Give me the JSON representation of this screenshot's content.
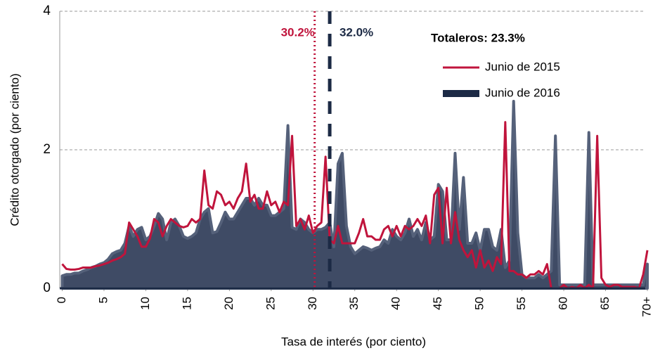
{
  "chart_data": {
    "type": "area_line",
    "x_label": "Tasa de interés (por ciento)",
    "y_label": "Crédito otorgado (por ciento)",
    "annotation": "Totaleros: 23.3%",
    "x": [
      0,
      0.5,
      1,
      1.5,
      2,
      2.5,
      3,
      3.5,
      4,
      4.5,
      5,
      5.5,
      6,
      6.5,
      7,
      7.5,
      8,
      8.5,
      9,
      9.5,
      10,
      10.5,
      11,
      11.5,
      12,
      12.5,
      13,
      13.5,
      14,
      14.5,
      15,
      15.5,
      16,
      16.5,
      17,
      17.5,
      18,
      18.5,
      19,
      19.5,
      20,
      20.5,
      21,
      21.5,
      22,
      22.5,
      23,
      23.5,
      24,
      24.5,
      25,
      25.5,
      26,
      26.5,
      27,
      27.5,
      28,
      28.5,
      29,
      29.5,
      30,
      30.5,
      31,
      31.5,
      32,
      32.5,
      33,
      33.5,
      34,
      34.5,
      35,
      35.5,
      36,
      36.5,
      37,
      37.5,
      38,
      38.5,
      39,
      39.5,
      40,
      40.5,
      41,
      41.5,
      42,
      42.5,
      43,
      43.5,
      44,
      44.5,
      45,
      45.5,
      46,
      46.5,
      47,
      47.5,
      48,
      48.5,
      49,
      49.5,
      50,
      50.5,
      51,
      51.5,
      52,
      52.5,
      53,
      53.5,
      54,
      54.5,
      55,
      55.5,
      56,
      56.5,
      57,
      57.5,
      58,
      58.5,
      59,
      59.5,
      60,
      60.5,
      61,
      61.5,
      62,
      62.5,
      63,
      63.5,
      64,
      64.5,
      65,
      65.5,
      66,
      66.5,
      67,
      67.5,
      68,
      68.5,
      69,
      69.5,
      70
    ],
    "series": [
      {
        "name": "Junio de 2016",
        "kind": "area",
        "color": "#3f4b65",
        "edge": "#55617a",
        "values": [
          0.18,
          0.2,
          0.2,
          0.22,
          0.22,
          0.25,
          0.27,
          0.3,
          0.32,
          0.35,
          0.37,
          0.42,
          0.5,
          0.53,
          0.55,
          0.65,
          0.9,
          0.75,
          0.85,
          0.88,
          0.7,
          0.75,
          0.9,
          1.08,
          1.0,
          0.7,
          0.95,
          1.0,
          0.9,
          0.75,
          0.72,
          0.75,
          0.8,
          1.0,
          1.1,
          1.15,
          0.8,
          0.82,
          0.95,
          1.1,
          1.0,
          1.0,
          1.1,
          1.2,
          1.3,
          1.3,
          1.2,
          1.3,
          1.2,
          1.2,
          1.05,
          1.05,
          1.1,
          1.15,
          2.35,
          0.88,
          0.85,
          1.0,
          0.95,
          0.85,
          0.8,
          0.85,
          0.85,
          0.88,
          0.95,
          0.6,
          1.8,
          1.95,
          0.9,
          0.6,
          0.5,
          0.55,
          0.6,
          0.58,
          0.55,
          0.58,
          0.6,
          0.7,
          0.65,
          0.85,
          0.75,
          0.7,
          0.8,
          1.0,
          0.75,
          0.85,
          0.7,
          0.95,
          0.7,
          0.75,
          1.5,
          1.4,
          0.7,
          0.7,
          1.95,
          0.85,
          1.6,
          0.65,
          0.65,
          0.8,
          0.55,
          0.85,
          0.85,
          0.6,
          0.55,
          0.85,
          0.3,
          0.4,
          2.7,
          0.8,
          0.2,
          0.15,
          0.15,
          0.15,
          0.2,
          0.15,
          0.2,
          0.25,
          2.2,
          0.05,
          0.05,
          0.05,
          0.05,
          0.05,
          0.05,
          0.05,
          2.25,
          0.05,
          0.05,
          0.05,
          0.05,
          0.05,
          0.05,
          0.05,
          0.05,
          0.05,
          0.05,
          0.05,
          0.05,
          0.05,
          0.35
        ]
      },
      {
        "name": "Junio de 2015",
        "kind": "line",
        "color": "#c0143c",
        "values": [
          0.35,
          0.28,
          0.27,
          0.27,
          0.28,
          0.3,
          0.3,
          0.3,
          0.32,
          0.33,
          0.35,
          0.37,
          0.4,
          0.42,
          0.45,
          0.5,
          0.95,
          0.85,
          0.75,
          0.6,
          0.6,
          0.72,
          1.0,
          0.95,
          0.75,
          0.9,
          1.0,
          0.95,
          0.9,
          0.88,
          0.9,
          1.0,
          0.95,
          1.0,
          1.7,
          1.2,
          1.15,
          1.4,
          1.35,
          1.2,
          1.25,
          1.15,
          1.3,
          1.4,
          1.8,
          1.25,
          1.35,
          1.15,
          1.15,
          1.4,
          1.2,
          1.25,
          1.1,
          1.25,
          1.2,
          2.2,
          0.9,
          1.0,
          0.85,
          1.05,
          0.8,
          0.9,
          0.95,
          1.9,
          0.7,
          0.65,
          0.9,
          0.65,
          0.65,
          0.65,
          0.65,
          0.8,
          1.0,
          0.75,
          0.75,
          0.7,
          0.7,
          0.85,
          0.9,
          0.75,
          0.9,
          0.75,
          0.9,
          0.85,
          0.9,
          1.0,
          0.9,
          1.05,
          0.65,
          1.35,
          1.45,
          0.65,
          1.45,
          0.65,
          1.1,
          0.7,
          0.55,
          0.45,
          0.55,
          0.3,
          0.55,
          0.3,
          0.4,
          0.25,
          0.45,
          0.35,
          2.4,
          0.25,
          0.25,
          0.2,
          0.2,
          0.15,
          0.2,
          0.2,
          0.25,
          0.2,
          0.35,
          0.0,
          0.0,
          0.0,
          0.05,
          0.0,
          0.02,
          0.0,
          0.05,
          0.0,
          0.05,
          0.0,
          2.2,
          0.15,
          0.05,
          0.02,
          0.05,
          0.05,
          0.02,
          0.02,
          0.02,
          0.02,
          0.0,
          0.2,
          0.55
        ]
      }
    ],
    "vlines": [
      {
        "value": 30.2,
        "label": "30.2%",
        "color": "#c0143c",
        "style": "dotted"
      },
      {
        "value": 32.0,
        "label": "32.0%",
        "color": "#1c2a45",
        "style": "dashed"
      }
    ],
    "xlim": [
      0,
      70
    ],
    "xticks": [
      0,
      5,
      10,
      15,
      20,
      25,
      30,
      35,
      40,
      45,
      50,
      55,
      60,
      65,
      {
        "value": 70,
        "label": "70+"
      }
    ],
    "ylim": [
      0,
      4
    ],
    "yticks": [
      0,
      2,
      4
    ],
    "grid": true,
    "legend": "upper right"
  }
}
